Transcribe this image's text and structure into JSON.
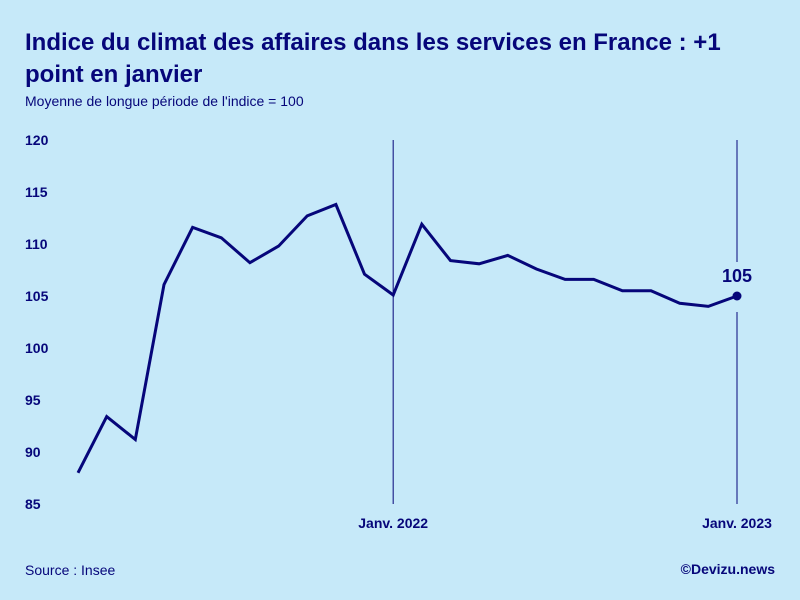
{
  "header": {
    "title": "Indice du climat des affaires dans les services en France : +1 point en janvier",
    "subtitle": "Moyenne de longue période de l'indice = 100"
  },
  "footer": {
    "source": "Source : Insee",
    "credit": "©Devizu.news"
  },
  "colors": {
    "background": "#c6e9f9",
    "line": "#06067a"
  },
  "chart_data": {
    "type": "line",
    "title": "Indice du climat des affaires dans les services en France : +1 point en janvier",
    "subtitle": "Moyenne de longue période de l'indice = 100",
    "xlabel": "",
    "ylabel": "",
    "ylim": [
      85,
      120
    ],
    "yticks": [
      120,
      115,
      110,
      105,
      100,
      95,
      90,
      85
    ],
    "grid": false,
    "x": [
      "2021-02",
      "2021-03",
      "2021-04",
      "2021-05",
      "2021-06",
      "2021-07",
      "2021-08",
      "2021-09",
      "2021-10",
      "2021-11",
      "2021-12",
      "2022-01",
      "2022-02",
      "2022-03",
      "2022-04",
      "2022-05",
      "2022-06",
      "2022-07",
      "2022-08",
      "2022-09",
      "2022-10",
      "2022-11",
      "2022-12",
      "2023-01"
    ],
    "series": [
      {
        "name": "Indice du climat des affaires dans les services",
        "values": [
          88,
          93.4,
          91.2,
          106.1,
          111.6,
          110.6,
          108.2,
          109.8,
          112.7,
          113.8,
          107.1,
          105.1,
          111.9,
          108.4,
          108.1,
          108.9,
          107.6,
          106.6,
          106.6,
          105.5,
          105.5,
          104.3,
          104,
          105
        ]
      }
    ],
    "markers": [
      {
        "label": "Janv. 2022",
        "index": 11
      },
      {
        "label": "Janv. 2023",
        "index": 23
      }
    ],
    "annotations": [
      {
        "text": "105",
        "index": 23,
        "value": 105
      }
    ]
  }
}
